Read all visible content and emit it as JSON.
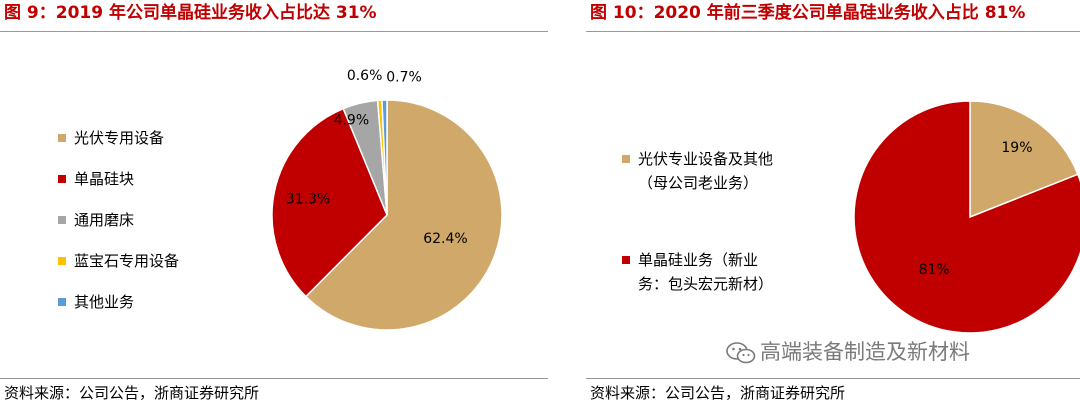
{
  "charts": {
    "left": {
      "title": "图 9：2019 年公司单晶硅业务收入占比达 31%",
      "source": "资料来源：公司公告，浙商证券研究所"
    },
    "right": {
      "title": "图 10：2020 年前三季度公司单晶硅业务收入占比 81%",
      "source": "资料来源：公司公告，浙商证券研究所"
    }
  },
  "watermark": {
    "text": "高端装备制造及新材料",
    "icon": "wechat-icon"
  },
  "chart_data": [
    {
      "type": "pie",
      "title": "图 9：2019 年公司单晶硅业务收入占比达 31%",
      "legend_position": "left",
      "slices": [
        {
          "label": "光伏专用设备",
          "value": 62.4,
          "display": "62.4%",
          "color": "#d0a86a"
        },
        {
          "label": "单晶硅块",
          "value": 31.3,
          "display": "31.3%",
          "color": "#c00000"
        },
        {
          "label": "通用磨床",
          "value": 4.9,
          "display": "4.9%",
          "color": "#a6a6a6"
        },
        {
          "label": "蓝宝石专用设备",
          "value": 0.6,
          "display": "0.6%",
          "color": "#ffc000"
        },
        {
          "label": "其他业务",
          "value": 0.7,
          "display": "0.7%",
          "color": "#5b9bd5"
        }
      ]
    },
    {
      "type": "pie",
      "title": "图 10：2020 年前三季度公司单晶硅业务收入占比 81%",
      "legend_position": "left",
      "slices": [
        {
          "label": "光伏专业设备及其他（母公司老业务）",
          "label_lines": [
            "光伏专业设备及其他",
            "（母公司老业务）"
          ],
          "value": 19,
          "display": "19%",
          "color": "#d0a86a"
        },
        {
          "label": "单晶硅业务（新业务：包头宏元新材）",
          "label_lines": [
            "单晶硅业务（新业",
            "务：包头宏元新材）"
          ],
          "value": 81,
          "display": "81%",
          "color": "#c00000"
        }
      ]
    }
  ]
}
